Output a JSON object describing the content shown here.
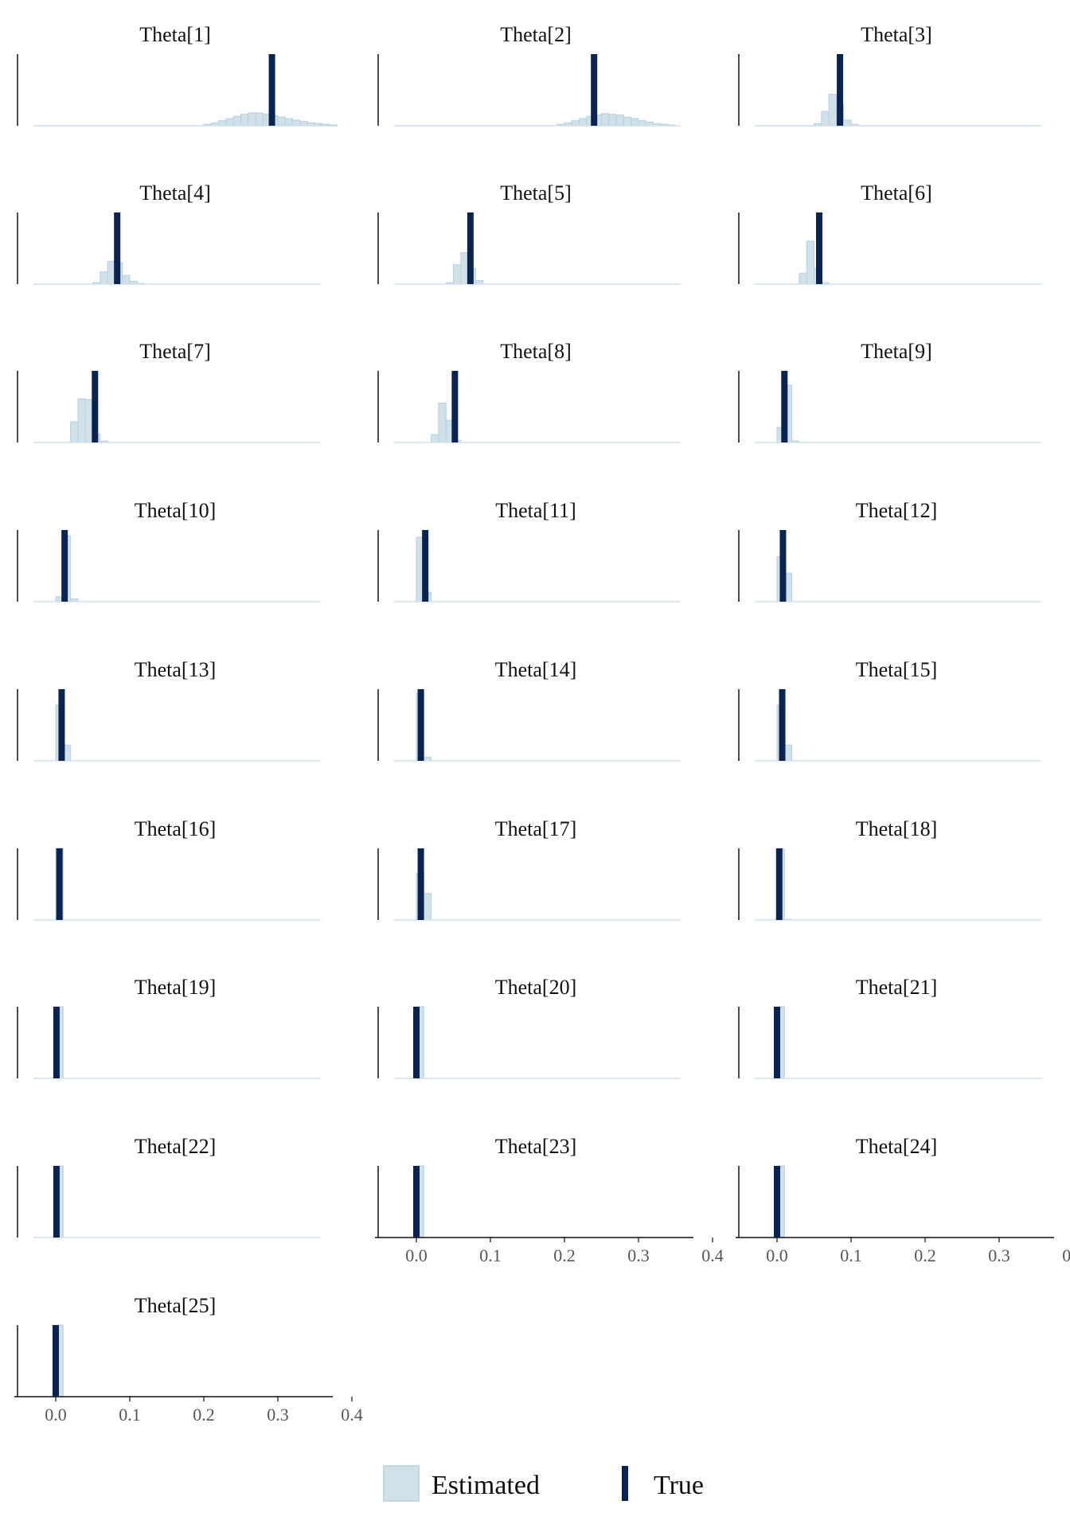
{
  "chart_data": {
    "type": "histogram",
    "layout": "small multiples, 3 columns, 9 rows (25 panels)",
    "xlim": [
      0.0,
      0.4
    ],
    "x_ticks": [
      "0.0",
      "0.1",
      "0.2",
      "0.3",
      "0.4"
    ],
    "x_axis_shown_on": [
      "Theta[23]",
      "Theta[24]",
      "Theta[25]"
    ],
    "y_axis": "free scale per panel, no tick labels",
    "grid": false,
    "colors": {
      "estimated_fill": "#d0e1ea",
      "estimated_edge": "#b7d0de",
      "true_line": "#0b2350",
      "axis": "#111111"
    },
    "legend": {
      "position": "bottom-center",
      "items": [
        {
          "label": "Estimated",
          "symbol": "square"
        },
        {
          "label": "True",
          "symbol": "vertical-line"
        }
      ]
    },
    "panels": [
      {
        "title": "Theta[1]",
        "true": 0.292,
        "est_bins": [
          [
            0.2,
            0.02
          ],
          [
            0.21,
            0.04
          ],
          [
            0.22,
            0.07
          ],
          [
            0.23,
            0.1
          ],
          [
            0.24,
            0.13
          ],
          [
            0.25,
            0.16
          ],
          [
            0.26,
            0.18
          ],
          [
            0.27,
            0.18
          ],
          [
            0.28,
            0.16
          ],
          [
            0.29,
            0.14
          ],
          [
            0.3,
            0.12
          ],
          [
            0.31,
            0.1
          ],
          [
            0.32,
            0.08
          ],
          [
            0.33,
            0.06
          ],
          [
            0.34,
            0.04
          ],
          [
            0.35,
            0.03
          ],
          [
            0.36,
            0.02
          ],
          [
            0.37,
            0.01
          ]
        ]
      },
      {
        "title": "Theta[2]",
        "true": 0.24,
        "est_bins": [
          [
            0.19,
            0.02
          ],
          [
            0.2,
            0.04
          ],
          [
            0.21,
            0.07
          ],
          [
            0.22,
            0.1
          ],
          [
            0.23,
            0.13
          ],
          [
            0.24,
            0.15
          ],
          [
            0.25,
            0.17
          ],
          [
            0.26,
            0.16
          ],
          [
            0.27,
            0.15
          ],
          [
            0.28,
            0.12
          ],
          [
            0.29,
            0.1
          ],
          [
            0.3,
            0.07
          ],
          [
            0.31,
            0.05
          ],
          [
            0.32,
            0.03
          ],
          [
            0.33,
            0.02
          ],
          [
            0.34,
            0.01
          ]
        ]
      },
      {
        "title": "Theta[3]",
        "true": 0.085,
        "est_bins": [
          [
            0.05,
            0.03
          ],
          [
            0.06,
            0.2
          ],
          [
            0.07,
            0.44
          ],
          [
            0.08,
            0.3
          ],
          [
            0.09,
            0.08
          ],
          [
            0.1,
            0.02
          ]
        ]
      },
      {
        "title": "Theta[4]",
        "true": 0.083,
        "est_bins": [
          [
            0.05,
            0.02
          ],
          [
            0.06,
            0.17
          ],
          [
            0.07,
            0.32
          ],
          [
            0.08,
            0.3
          ],
          [
            0.09,
            0.12
          ],
          [
            0.1,
            0.04
          ],
          [
            0.11,
            0.01
          ]
        ]
      },
      {
        "title": "Theta[5]",
        "true": 0.073,
        "est_bins": [
          [
            0.04,
            0.02
          ],
          [
            0.05,
            0.27
          ],
          [
            0.06,
            0.44
          ],
          [
            0.07,
            0.22
          ],
          [
            0.08,
            0.05
          ]
        ]
      },
      {
        "title": "Theta[6]",
        "true": 0.057,
        "est_bins": [
          [
            0.03,
            0.15
          ],
          [
            0.04,
            0.6
          ],
          [
            0.05,
            0.22
          ],
          [
            0.06,
            0.02
          ]
        ]
      },
      {
        "title": "Theta[7]",
        "true": 0.053,
        "est_bins": [
          [
            0.02,
            0.29
          ],
          [
            0.03,
            0.61
          ],
          [
            0.04,
            0.6
          ],
          [
            0.05,
            0.12
          ],
          [
            0.06,
            0.02
          ]
        ]
      },
      {
        "title": "Theta[8]",
        "true": 0.052,
        "est_bins": [
          [
            0.02,
            0.11
          ],
          [
            0.03,
            0.55
          ],
          [
            0.04,
            0.31
          ],
          [
            0.05,
            0.03
          ]
        ]
      },
      {
        "title": "Theta[9]",
        "true": 0.01,
        "est_bins": [
          [
            0.0,
            0.21
          ],
          [
            0.01,
            0.8
          ],
          [
            0.02,
            0.02
          ]
        ]
      },
      {
        "title": "Theta[10]",
        "true": 0.012,
        "est_bins": [
          [
            0.0,
            0.07
          ],
          [
            0.01,
            0.92
          ],
          [
            0.02,
            0.04
          ]
        ]
      },
      {
        "title": "Theta[11]",
        "true": 0.012,
        "est_bins": [
          [
            0.0,
            0.9
          ],
          [
            0.01,
            0.13
          ]
        ]
      },
      {
        "title": "Theta[12]",
        "true": 0.008,
        "est_bins": [
          [
            0.0,
            0.63
          ],
          [
            0.01,
            0.4
          ]
        ]
      },
      {
        "title": "Theta[13]",
        "true": 0.008,
        "est_bins": [
          [
            0.0,
            0.78
          ],
          [
            0.01,
            0.22
          ]
        ]
      },
      {
        "title": "Theta[14]",
        "true": 0.006,
        "est_bins": [
          [
            0.0,
            0.94
          ],
          [
            0.01,
            0.05
          ]
        ]
      },
      {
        "title": "Theta[15]",
        "true": 0.007,
        "est_bins": [
          [
            0.0,
            0.78
          ],
          [
            0.01,
            0.22
          ]
        ]
      },
      {
        "title": "Theta[16]",
        "true": 0.005,
        "est_bins": [
          [
            0.0,
            1.0
          ]
        ]
      },
      {
        "title": "Theta[17]",
        "true": 0.006,
        "est_bins": [
          [
            0.0,
            0.65
          ],
          [
            0.01,
            0.37
          ]
        ]
      },
      {
        "title": "Theta[18]",
        "true": 0.003,
        "est_bins": [
          [
            0.0,
            0.99
          ],
          [
            0.01,
            0.01
          ]
        ]
      },
      {
        "title": "Theta[19]",
        "true": 0.001,
        "est_bins": [
          [
            0.0,
            1.0
          ]
        ]
      },
      {
        "title": "Theta[20]",
        "true": 0.0,
        "est_bins": [
          [
            0.0,
            1.0
          ]
        ]
      },
      {
        "title": "Theta[21]",
        "true": 0.0,
        "est_bins": [
          [
            0.0,
            1.0
          ]
        ]
      },
      {
        "title": "Theta[22]",
        "true": 0.001,
        "est_bins": [
          [
            0.0,
            1.0
          ]
        ]
      },
      {
        "title": "Theta[23]",
        "true": 0.0,
        "est_bins": [
          [
            0.0,
            1.0
          ]
        ]
      },
      {
        "title": "Theta[24]",
        "true": 0.0,
        "est_bins": [
          [
            0.0,
            1.0
          ]
        ]
      },
      {
        "title": "Theta[25]",
        "true": 0.0,
        "est_bins": [
          [
            0.0,
            1.0
          ]
        ]
      }
    ]
  }
}
